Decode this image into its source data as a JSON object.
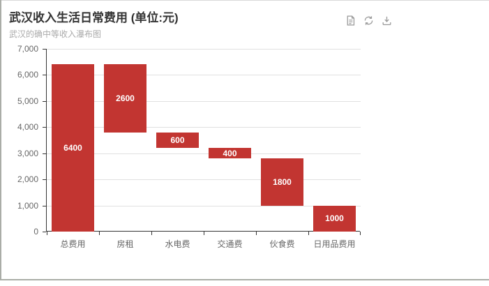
{
  "header": {
    "title": "武汉收入生活日常费用 (单位:元)",
    "subtitle": "武汉的确中等收入瀑布图"
  },
  "toolbar": {
    "icons": [
      "data-view-icon",
      "restore-icon",
      "save-as-image-icon"
    ]
  },
  "colors": {
    "bar": "#c23531",
    "bar_label": "#ffffff",
    "axis_line": "#333333",
    "axis_label": "#666666",
    "gridline": "#e0e0e0",
    "title": "#333333",
    "subtitle": "#aaaaaa",
    "icon": "#999999"
  },
  "chart_data": {
    "type": "bar",
    "variant": "waterfall",
    "title": "武汉收入生活日常费用 (单位:元)",
    "subtitle": "武汉的确中等收入瀑布图",
    "categories": [
      "总费用",
      "房租",
      "水电费",
      "交通费",
      "伙食费",
      "日用品费用"
    ],
    "values": [
      6400,
      2600,
      600,
      400,
      1800,
      1000
    ],
    "bar_labels": [
      "6400",
      "2600",
      "600",
      "400",
      "1800",
      "1000"
    ],
    "segments": [
      {
        "category": "总费用",
        "value": 6400,
        "from": 0,
        "to": 6400
      },
      {
        "category": "房租",
        "value": 2600,
        "from": 3800,
        "to": 6400
      },
      {
        "category": "水电费",
        "value": 600,
        "from": 3200,
        "to": 3800
      },
      {
        "category": "交通费",
        "value": 400,
        "from": 2800,
        "to": 3200
      },
      {
        "category": "伙食费",
        "value": 1800,
        "from": 1000,
        "to": 2800
      },
      {
        "category": "日用品费用",
        "value": 1000,
        "from": 0,
        "to": 1000
      }
    ],
    "xlabel": "",
    "ylabel": "",
    "ylim": [
      0,
      7000
    ],
    "yticks": [
      {
        "value": 0,
        "label": "0"
      },
      {
        "value": 1000,
        "label": "1,000"
      },
      {
        "value": 2000,
        "label": "2,000"
      },
      {
        "value": 3000,
        "label": "3,000"
      },
      {
        "value": 4000,
        "label": "4,000"
      },
      {
        "value": 5000,
        "label": "5,000"
      },
      {
        "value": 6000,
        "label": "6,000"
      },
      {
        "value": 7000,
        "label": "7,000"
      }
    ],
    "grid": true,
    "legend": false
  }
}
